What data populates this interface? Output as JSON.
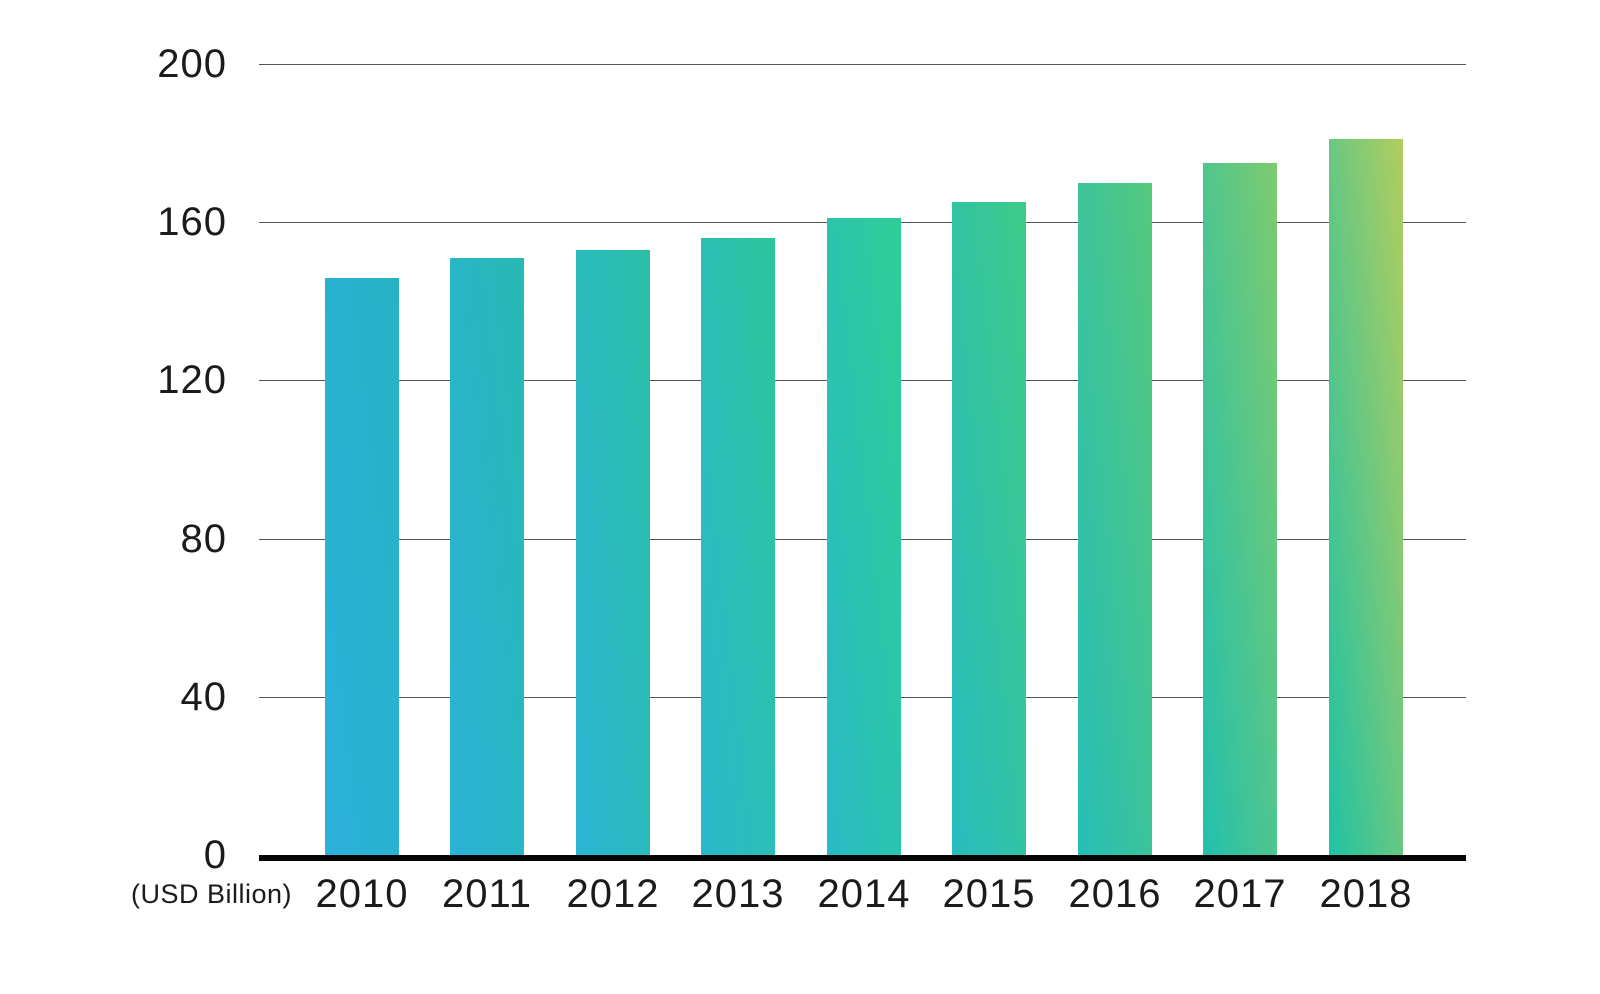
{
  "chart_data": {
    "type": "bar",
    "title": "",
    "unit_label": "(USD Billion)",
    "categories": [
      "2010",
      "2011",
      "2012",
      "2013",
      "2014",
      "2015",
      "2016",
      "2017",
      "2018"
    ],
    "values": [
      146,
      151,
      153,
      156,
      161,
      165,
      170,
      175,
      181
    ],
    "xlabel": "",
    "ylabel": "",
    "ylim": [
      0,
      200
    ],
    "yticks": [
      0,
      40,
      80,
      120,
      160,
      200
    ],
    "grid": true,
    "legend": false,
    "gridline_color": "#575757",
    "axis_color": "#050505",
    "text_color": "#1b1b1b",
    "bar_gradients": [
      {
        "bottom": "#2cb1dc",
        "top": "#25b3c4"
      },
      {
        "bottom": "#2bb3d8",
        "top": "#27b9b4"
      },
      {
        "bottom": "#2ab5d3",
        "top": "#29bfa6"
      },
      {
        "bottom": "#29b8cd",
        "top": "#2cc59b"
      },
      {
        "bottom": "#28bac6",
        "top": "#2fce95"
      },
      {
        "bottom": "#27bcbe",
        "top": "#3ecb88"
      },
      {
        "bottom": "#25beb6",
        "top": "#55c97d"
      },
      {
        "bottom": "#22c0ad",
        "top": "#7ecb6e"
      },
      {
        "bottom": "#1fc2a4",
        "top": "#b2cd5e"
      }
    ]
  }
}
